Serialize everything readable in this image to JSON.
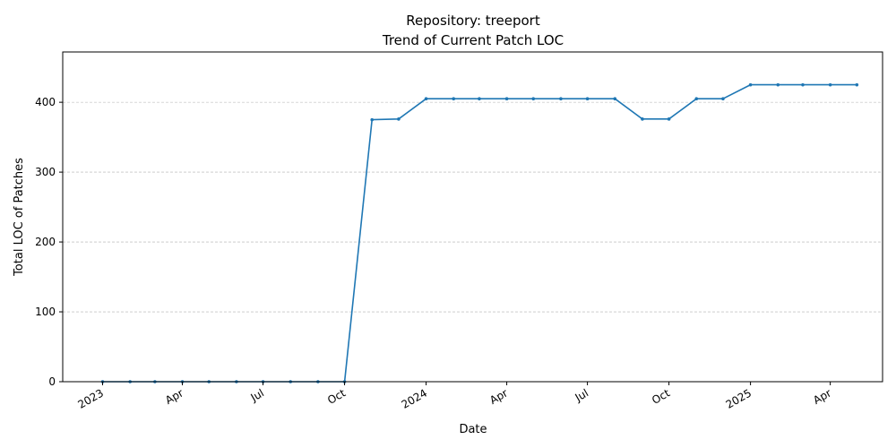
{
  "chart_data": {
    "type": "line",
    "title_line1": "Repository: treeport",
    "title_line2": "Trend of Current Patch LOC",
    "xlabel": "Date",
    "ylabel": "Total LOC of Patches",
    "ylim": [
      0,
      472
    ],
    "xlim": [
      "2022-11-17",
      "2025-05-30"
    ],
    "yticks": [
      0,
      100,
      200,
      300,
      400
    ],
    "xticks": [
      {
        "date": "2023-01-01",
        "label": "2023"
      },
      {
        "date": "2023-04-01",
        "label": "Apr"
      },
      {
        "date": "2023-07-01",
        "label": "Jul"
      },
      {
        "date": "2023-10-01",
        "label": "Oct"
      },
      {
        "date": "2024-01-01",
        "label": "2024"
      },
      {
        "date": "2024-04-01",
        "label": "Apr"
      },
      {
        "date": "2024-07-01",
        "label": "Jul"
      },
      {
        "date": "2024-10-01",
        "label": "Oct"
      },
      {
        "date": "2025-01-01",
        "label": "2025"
      },
      {
        "date": "2025-04-01",
        "label": "Apr"
      }
    ],
    "grid": "horizontal dashed",
    "color": "#1f77b4",
    "series": [
      {
        "x": [
          "2023-01-01",
          "2023-02-01",
          "2023-03-01",
          "2023-04-01",
          "2023-05-01",
          "2023-06-01",
          "2023-07-01",
          "2023-08-01",
          "2023-09-01",
          "2023-10-01",
          "2023-11-01",
          "2023-12-01",
          "2024-01-01",
          "2024-02-01",
          "2024-03-01",
          "2024-04-01",
          "2024-05-01",
          "2024-06-01",
          "2024-07-01",
          "2024-08-01",
          "2024-09-01",
          "2024-10-01",
          "2024-11-01",
          "2024-12-01",
          "2025-01-01",
          "2025-02-01",
          "2025-03-01",
          "2025-04-01",
          "2025-05-01"
        ],
        "values": [
          0,
          0,
          0,
          0,
          0,
          0,
          0,
          0,
          0,
          0,
          375,
          376,
          405,
          405,
          405,
          405,
          405,
          405,
          405,
          405,
          376,
          376,
          405,
          405,
          425,
          425,
          425,
          425,
          425
        ]
      }
    ]
  }
}
